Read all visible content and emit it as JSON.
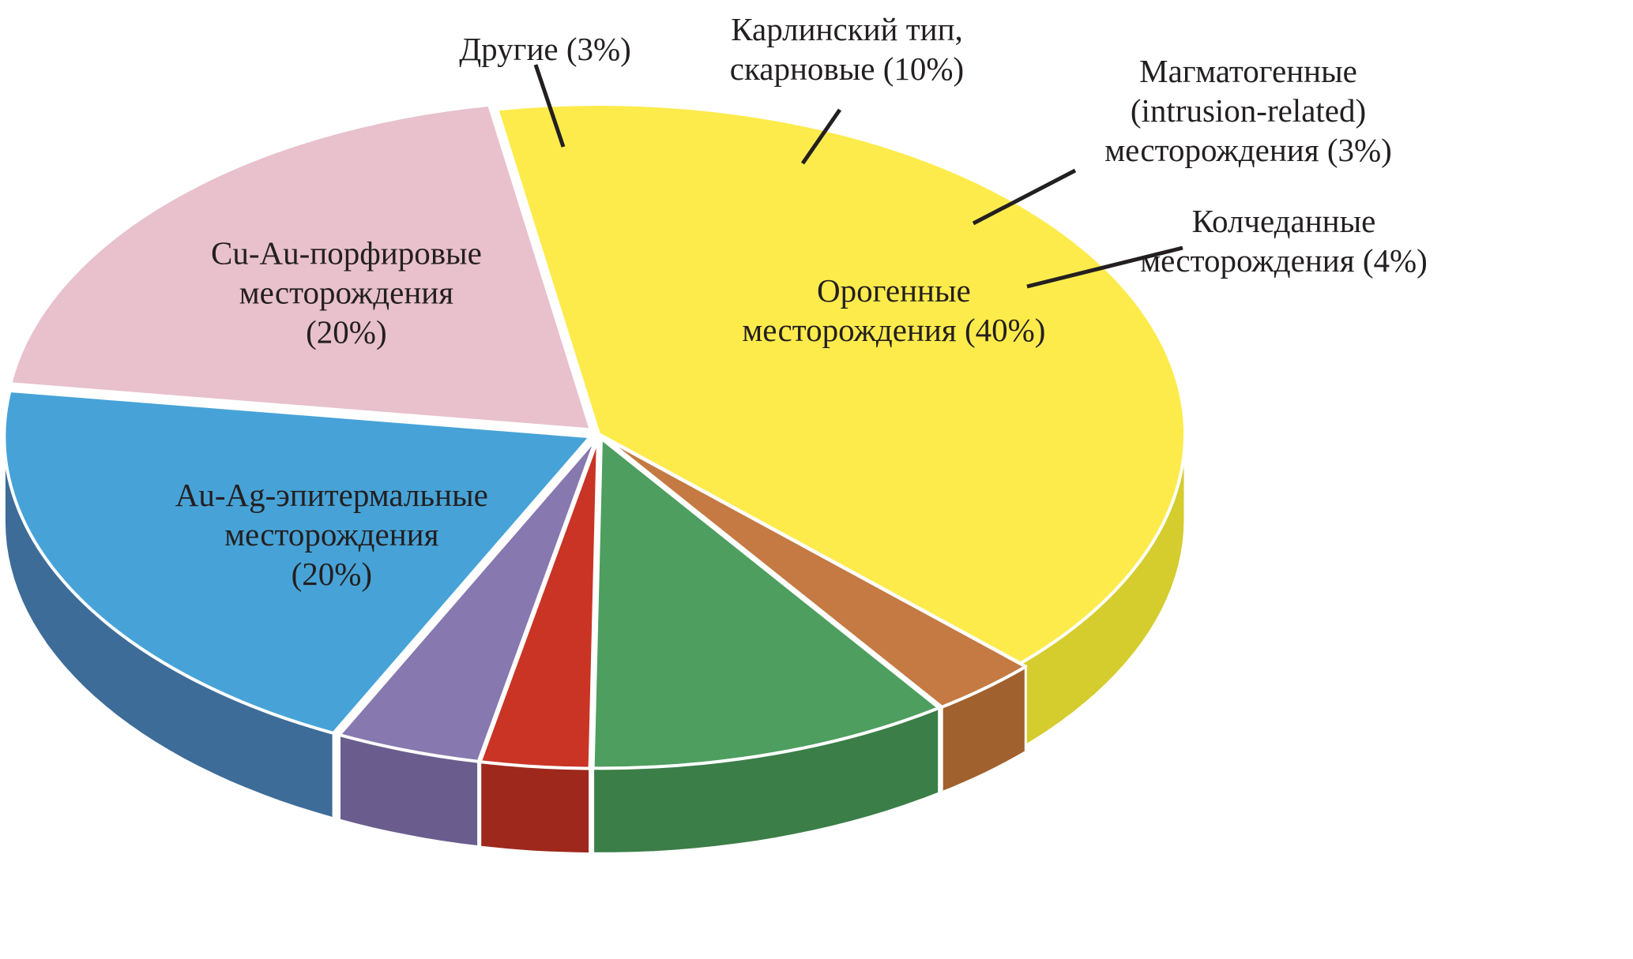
{
  "chart_data": {
    "type": "pie",
    "style": "3d-exploded",
    "slices": [
      {
        "name": "Орогенные месторождения",
        "value": 40,
        "label_lines": [
          "Орогенные",
          "месторождения (40%)"
        ],
        "color": "#FDEB4B",
        "side_color": "#D5CC2E"
      },
      {
        "name": "Другие",
        "value": 3,
        "label_lines": [
          "Другие (3%)"
        ],
        "color": "#C47A42",
        "side_color": "#A0612F"
      },
      {
        "name": "Карлинский тип, скарновые",
        "value": 10,
        "label_lines": [
          "Карлинский тип,",
          "скарновые (10%)"
        ],
        "color": "#4E9E5F",
        "side_color": "#3B7E48"
      },
      {
        "name": "Магматогенные (intrusion-related) месторождения",
        "value": 3,
        "label_lines": [
          "Магматогенные",
          "(intrusion-related)",
          "месторождения (3%)"
        ],
        "color": "#C93425",
        "side_color": "#9E281C"
      },
      {
        "name": "Колчеданные месторождения",
        "value": 4,
        "label_lines": [
          "Колчеданные",
          "месторождения (4%)"
        ],
        "color": "#8778AF",
        "side_color": "#6A5D8E"
      },
      {
        "name": "Au-Ag-эпитермальные месторождения",
        "value": 20,
        "label_lines": [
          "Au-Ag-эпитермальные",
          "месторождения",
          "(20%)"
        ],
        "color": "#47A3D7",
        "side_color": "#3E6C98"
      },
      {
        "name": "Cu-Au-порфировые месторождения",
        "value": 20,
        "label_lines": [
          "Cu-Au-порфировые",
          "месторождения",
          "(20%)"
        ],
        "color": "#E8C1CC",
        "side_color": "#D0858C"
      }
    ],
    "legend": "none",
    "labels": "inside-and-leader-lines"
  }
}
